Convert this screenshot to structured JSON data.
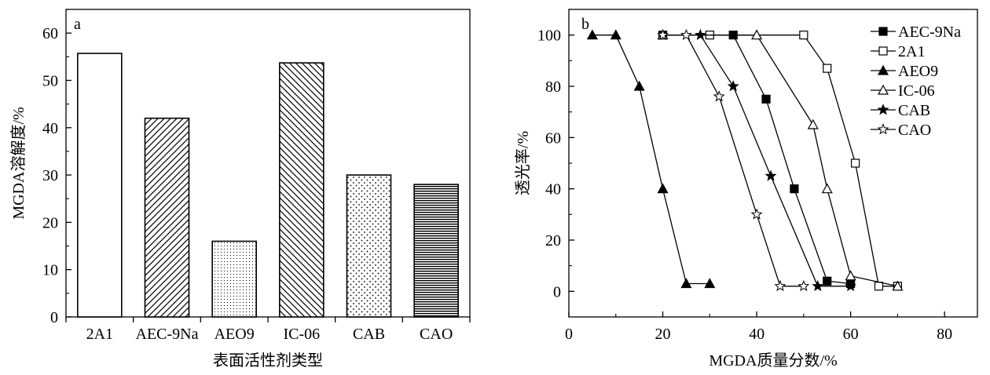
{
  "chart_data": [
    {
      "type": "bar",
      "panel_label": "a",
      "categories": [
        "2A1",
        "AEC-9Na",
        "AEO9",
        "IC-06",
        "CAB",
        "CAO"
      ],
      "values": [
        55.7,
        42,
        16,
        53.7,
        30,
        28
      ],
      "patterns": [
        "none",
        "diagonal-up",
        "fine-dots",
        "diagonal-down",
        "dots",
        "horizontal-lines"
      ],
      "xlabel": "表面活性剂类型",
      "ylabel": "MGDA溶解度/%",
      "ylim": [
        0,
        65
      ],
      "yticks": [
        0,
        10,
        20,
        30,
        40,
        50,
        60
      ],
      "grid": false
    },
    {
      "type": "line",
      "panel_label": "b",
      "xlabel": "MGDA质量分数/%",
      "ylabel": "透光率/%",
      "xlim": [
        0,
        87
      ],
      "ylim": [
        -10,
        110
      ],
      "xticks": [
        0,
        20,
        40,
        60,
        80
      ],
      "yticks": [
        0,
        20,
        40,
        60,
        80,
        100
      ],
      "grid": false,
      "legend_position": "top-right",
      "series": [
        {
          "name": "AEC-9Na",
          "marker": "filled-square",
          "x": [
            20,
            35,
            42,
            48,
            55,
            60
          ],
          "y": [
            100,
            100,
            75,
            40,
            4,
            3
          ]
        },
        {
          "name": "2A1",
          "marker": "open-square",
          "x": [
            30,
            50,
            55,
            61,
            66,
            70
          ],
          "y": [
            100,
            100,
            87,
            50,
            2,
            2
          ]
        },
        {
          "name": "AEO9",
          "marker": "filled-triangle",
          "x": [
            5,
            10,
            15,
            20,
            25,
            30
          ],
          "y": [
            100,
            100,
            80,
            40,
            3,
            3
          ]
        },
        {
          "name": "IC-06",
          "marker": "open-triangle",
          "x": [
            20,
            40,
            52,
            55,
            60,
            70
          ],
          "y": [
            100,
            100,
            65,
            40,
            6,
            2
          ]
        },
        {
          "name": "CAB",
          "marker": "filled-star",
          "x": [
            28,
            35,
            43,
            53,
            60
          ],
          "y": [
            100,
            80,
            45,
            2,
            2
          ]
        },
        {
          "name": "CAO",
          "marker": "open-star",
          "x": [
            20,
            25,
            32,
            40,
            45,
            50
          ],
          "y": [
            100,
            100,
            76,
            30,
            2,
            2
          ]
        }
      ]
    }
  ]
}
